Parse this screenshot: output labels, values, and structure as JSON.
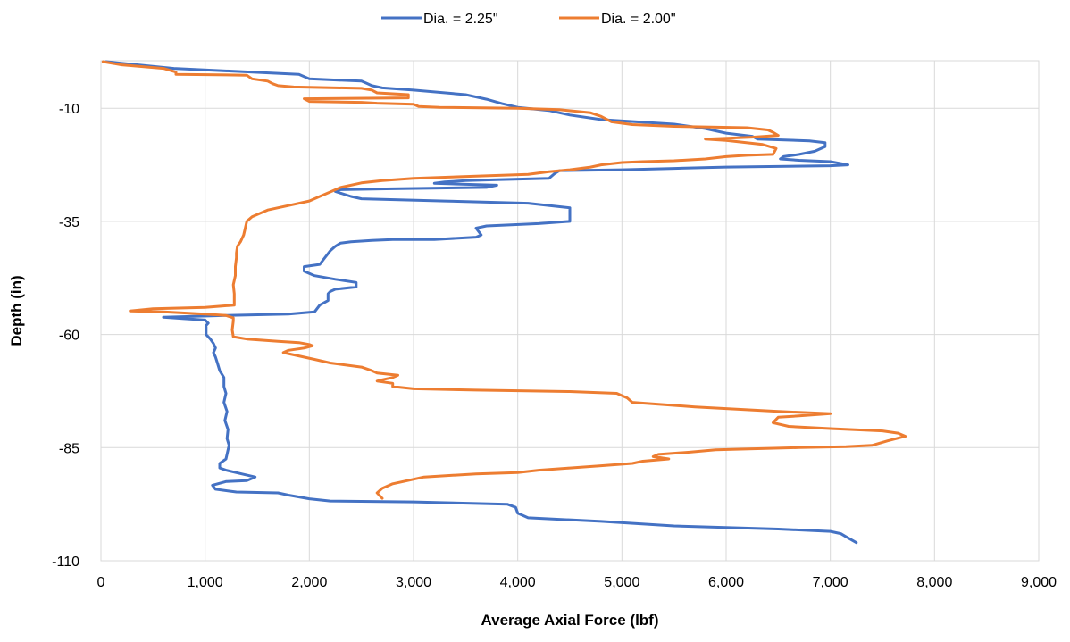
{
  "chart_data": {
    "type": "line",
    "title": "",
    "xlabel": "Average Axial Force (lbf)",
    "ylabel": "Depth (in)",
    "xlim": [
      0,
      9000
    ],
    "ylim": [
      -110,
      0.5
    ],
    "xticks": [
      0,
      1000,
      2000,
      3000,
      4000,
      5000,
      6000,
      7000,
      8000,
      9000
    ],
    "xtick_labels": [
      "0",
      "1,000",
      "2,000",
      "3,000",
      "4,000",
      "5,000",
      "6,000",
      "7,000",
      "8,000",
      "9,000"
    ],
    "yticks": [
      -10,
      -35,
      -60,
      -85,
      -110
    ],
    "ytick_labels": [
      "-10",
      "-35",
      "-60",
      "-85",
      "-110"
    ],
    "grid": true,
    "legend_position": "top-center",
    "series": [
      {
        "name": "Dia. = 2.25\"",
        "color": "#4472C4",
        "points": [
          [
            50,
            0.3
          ],
          [
            700,
            -1.2
          ],
          [
            1900,
            -2.5
          ],
          [
            1950,
            -3
          ],
          [
            2000,
            -3.5
          ],
          [
            2500,
            -4
          ],
          [
            2550,
            -4.5
          ],
          [
            2600,
            -5
          ],
          [
            2700,
            -5.5
          ],
          [
            3000,
            -6
          ],
          [
            3500,
            -7
          ],
          [
            3700,
            -8
          ],
          [
            3850,
            -9
          ],
          [
            4000,
            -9.8
          ],
          [
            4300,
            -10.5
          ],
          [
            4500,
            -11.5
          ],
          [
            4800,
            -12.5
          ],
          [
            5500,
            -13.5
          ],
          [
            5800,
            -14.5
          ],
          [
            6000,
            -15.5
          ],
          [
            6250,
            -16.2
          ],
          [
            6300,
            -16.8
          ],
          [
            6800,
            -17.2
          ],
          [
            6950,
            -17.6
          ],
          [
            6950,
            -18.5
          ],
          [
            6850,
            -19.5
          ],
          [
            6700,
            -20.2
          ],
          [
            6550,
            -20.7
          ],
          [
            6520,
            -21.2
          ],
          [
            6700,
            -21.5
          ],
          [
            7000,
            -21.8
          ],
          [
            7170,
            -22.5
          ],
          [
            7000,
            -22.7
          ],
          [
            6000,
            -23
          ],
          [
            5500,
            -23.3
          ],
          [
            5000,
            -23.6
          ],
          [
            4700,
            -23.7
          ],
          [
            4400,
            -23.8
          ],
          [
            4350,
            -24.5
          ],
          [
            4300,
            -25.5
          ],
          [
            3800,
            -25.8
          ],
          [
            3500,
            -26
          ],
          [
            3300,
            -26.3
          ],
          [
            3200,
            -26.6
          ],
          [
            3800,
            -27
          ],
          [
            3700,
            -27.5
          ],
          [
            2800,
            -27.8
          ],
          [
            2300,
            -28
          ],
          [
            2250,
            -28.4
          ],
          [
            2400,
            -29.5
          ],
          [
            2500,
            -30
          ],
          [
            3300,
            -30.5
          ],
          [
            4100,
            -31
          ],
          [
            4500,
            -32
          ],
          [
            4500,
            -35
          ],
          [
            4200,
            -35.5
          ],
          [
            3700,
            -36
          ],
          [
            3600,
            -36.5
          ],
          [
            3650,
            -38
          ],
          [
            3600,
            -38.5
          ],
          [
            3200,
            -39
          ],
          [
            2800,
            -39
          ],
          [
            2600,
            -39.2
          ],
          [
            2400,
            -39.5
          ],
          [
            2300,
            -39.8
          ],
          [
            2250,
            -40.5
          ],
          [
            2200,
            -41.5
          ],
          [
            2150,
            -43
          ],
          [
            2100,
            -44.5
          ],
          [
            1950,
            -45
          ],
          [
            1950,
            -46
          ],
          [
            2050,
            -47
          ],
          [
            2250,
            -47.8
          ],
          [
            2450,
            -48.5
          ],
          [
            2450,
            -49.5
          ],
          [
            2250,
            -50
          ],
          [
            2200,
            -50.5
          ],
          [
            2180,
            -51
          ],
          [
            2180,
            -52.5
          ],
          [
            2100,
            -53.5
          ],
          [
            2050,
            -55
          ],
          [
            1800,
            -55.5
          ],
          [
            1200,
            -55.8
          ],
          [
            600,
            -56.2
          ],
          [
            800,
            -56.5
          ],
          [
            1000,
            -56.8
          ],
          [
            1030,
            -57.5
          ],
          [
            1010,
            -58
          ],
          [
            1010,
            -60
          ],
          [
            1050,
            -61
          ],
          [
            1080,
            -62
          ],
          [
            1100,
            -63
          ],
          [
            1080,
            -64
          ],
          [
            1100,
            -65
          ],
          [
            1120,
            -66.5
          ],
          [
            1140,
            -68
          ],
          [
            1180,
            -69.5
          ],
          [
            1180,
            -71.5
          ],
          [
            1200,
            -73
          ],
          [
            1180,
            -75
          ],
          [
            1210,
            -77
          ],
          [
            1190,
            -79
          ],
          [
            1220,
            -81
          ],
          [
            1210,
            -83
          ],
          [
            1230,
            -84.5
          ],
          [
            1220,
            -85.5
          ],
          [
            1200,
            -87.5
          ],
          [
            1140,
            -88.5
          ],
          [
            1140,
            -89.5
          ],
          [
            1200,
            -90
          ],
          [
            1350,
            -90.8
          ],
          [
            1480,
            -91.5
          ],
          [
            1400,
            -92.3
          ],
          [
            1200,
            -92.5
          ],
          [
            1070,
            -93.3
          ],
          [
            1100,
            -94.2
          ],
          [
            1300,
            -94.8
          ],
          [
            1700,
            -95
          ],
          [
            1800,
            -95.5
          ],
          [
            2000,
            -96.3
          ],
          [
            2200,
            -96.8
          ],
          [
            3000,
            -97
          ],
          [
            3900,
            -97.5
          ],
          [
            3980,
            -98.2
          ],
          [
            4000,
            -99.5
          ],
          [
            4100,
            -100.5
          ],
          [
            4800,
            -101.3
          ],
          [
            5500,
            -102.3
          ],
          [
            6500,
            -103
          ],
          [
            7000,
            -103.5
          ],
          [
            7100,
            -104
          ],
          [
            7150,
            -104.7
          ],
          [
            7250,
            -106
          ]
        ]
      },
      {
        "name": "Dia. = 2.00\"",
        "color": "#ED7D31",
        "points": [
          [
            20,
            0.3
          ],
          [
            200,
            -0.4
          ],
          [
            600,
            -1.2
          ],
          [
            720,
            -2
          ],
          [
            720,
            -2.5
          ],
          [
            1400,
            -2.7
          ],
          [
            1450,
            -3.5
          ],
          [
            1600,
            -4
          ],
          [
            1650,
            -4.6
          ],
          [
            1700,
            -5
          ],
          [
            1850,
            -5.3
          ],
          [
            2500,
            -5.6
          ],
          [
            2600,
            -6
          ],
          [
            2650,
            -6.6
          ],
          [
            2950,
            -7
          ],
          [
            2950,
            -7.7
          ],
          [
            1950,
            -7.9
          ],
          [
            2000,
            -8.5
          ],
          [
            2500,
            -8.7
          ],
          [
            2650,
            -8.9
          ],
          [
            3000,
            -9.1
          ],
          [
            3050,
            -9.6
          ],
          [
            3250,
            -9.8
          ],
          [
            4000,
            -10
          ],
          [
            4400,
            -10.3
          ],
          [
            4700,
            -11
          ],
          [
            4800,
            -11.8
          ],
          [
            4900,
            -13
          ],
          [
            5100,
            -13.6
          ],
          [
            5500,
            -14
          ],
          [
            6200,
            -14.3
          ],
          [
            6400,
            -14.8
          ],
          [
            6450,
            -15.3
          ],
          [
            6500,
            -16
          ],
          [
            6250,
            -16.4
          ],
          [
            5800,
            -16.8
          ],
          [
            6000,
            -17.1
          ],
          [
            6350,
            -18
          ],
          [
            6480,
            -18.9
          ],
          [
            6450,
            -20.2
          ],
          [
            6200,
            -20.4
          ],
          [
            6000,
            -20.7
          ],
          [
            5800,
            -21.2
          ],
          [
            5500,
            -21.6
          ],
          [
            5200,
            -21.8
          ],
          [
            5000,
            -22
          ],
          [
            4800,
            -22.5
          ],
          [
            4700,
            -23
          ],
          [
            4500,
            -23.6
          ],
          [
            4300,
            -24
          ],
          [
            4100,
            -24.6
          ],
          [
            3600,
            -25
          ],
          [
            3000,
            -25.5
          ],
          [
            2700,
            -26
          ],
          [
            2500,
            -26.5
          ],
          [
            2300,
            -27.5
          ],
          [
            2200,
            -28.5
          ],
          [
            2100,
            -29.5
          ],
          [
            2000,
            -30.5
          ],
          [
            1800,
            -31.5
          ],
          [
            1600,
            -32.5
          ],
          [
            1500,
            -33.5
          ],
          [
            1450,
            -34
          ],
          [
            1400,
            -35
          ],
          [
            1380,
            -37
          ],
          [
            1370,
            -38
          ],
          [
            1340,
            -39.5
          ],
          [
            1310,
            -40.5
          ],
          [
            1300,
            -42
          ],
          [
            1300,
            -43
          ],
          [
            1290,
            -45
          ],
          [
            1290,
            -47
          ],
          [
            1270,
            -49
          ],
          [
            1280,
            -51
          ],
          [
            1280,
            -53.5
          ],
          [
            1000,
            -54
          ],
          [
            500,
            -54.3
          ],
          [
            280,
            -54.8
          ],
          [
            600,
            -55
          ],
          [
            1000,
            -55.5
          ],
          [
            1200,
            -55.8
          ],
          [
            1270,
            -56.3
          ],
          [
            1270,
            -57
          ],
          [
            1260,
            -59
          ],
          [
            1270,
            -60.5
          ],
          [
            1400,
            -61
          ],
          [
            1700,
            -61.5
          ],
          [
            1900,
            -61.8
          ],
          [
            2000,
            -62.2
          ],
          [
            2030,
            -62.5
          ],
          [
            1950,
            -63
          ],
          [
            1800,
            -63.5
          ],
          [
            1750,
            -64
          ],
          [
            1850,
            -64.5
          ],
          [
            2050,
            -65.5
          ],
          [
            2200,
            -66.3
          ],
          [
            2500,
            -67.2
          ],
          [
            2600,
            -68
          ],
          [
            2650,
            -68.5
          ],
          [
            2850,
            -69
          ],
          [
            2800,
            -69.5
          ],
          [
            2700,
            -70
          ],
          [
            2650,
            -70.3
          ],
          [
            2800,
            -70.8
          ],
          [
            2800,
            -71.5
          ],
          [
            3000,
            -72
          ],
          [
            3600,
            -72.3
          ],
          [
            4500,
            -72.6
          ],
          [
            4950,
            -73
          ],
          [
            5050,
            -74
          ],
          [
            5100,
            -75
          ],
          [
            5700,
            -76
          ],
          [
            6500,
            -77
          ],
          [
            7000,
            -77.5
          ],
          [
            6700,
            -78
          ],
          [
            6500,
            -78.3
          ],
          [
            6450,
            -79.5
          ],
          [
            6600,
            -80.3
          ],
          [
            7000,
            -80.8
          ],
          [
            7500,
            -81.3
          ],
          [
            7650,
            -81.8
          ],
          [
            7720,
            -82.5
          ],
          [
            7550,
            -83.5
          ],
          [
            7400,
            -84.5
          ],
          [
            7150,
            -84.8
          ],
          [
            6700,
            -85
          ],
          [
            5900,
            -85.5
          ],
          [
            5650,
            -86
          ],
          [
            5350,
            -86.5
          ],
          [
            5300,
            -87
          ],
          [
            5450,
            -87.5
          ],
          [
            5200,
            -88
          ],
          [
            5100,
            -88.5
          ],
          [
            4800,
            -89
          ],
          [
            4500,
            -89.5
          ],
          [
            4200,
            -90
          ],
          [
            4000,
            -90.5
          ],
          [
            3600,
            -90.8
          ],
          [
            3100,
            -91.5
          ],
          [
            2900,
            -92.5
          ],
          [
            2800,
            -93
          ],
          [
            2700,
            -94
          ],
          [
            2650,
            -95
          ],
          [
            2700,
            -96.2
          ]
        ]
      }
    ]
  }
}
